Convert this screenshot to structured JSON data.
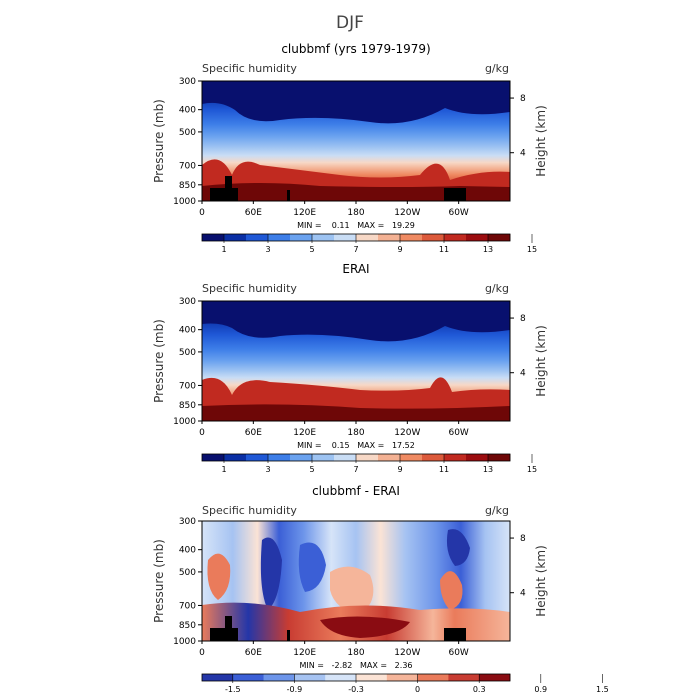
{
  "page_title": "DJF",
  "colors": {
    "blue_scale": [
      "#08106e",
      "#0a2fa5",
      "#1f58d6",
      "#3d7ee8",
      "#6aa2ef",
      "#9dc3f2",
      "#c9ddf5",
      "#f7d8c6",
      "#f3b193",
      "#ef8a62",
      "#dc5a3b",
      "#c12a20",
      "#9b0c0f",
      "#6e0707"
    ],
    "diverging_scale": [
      "#2436a8",
      "#3b5fd6",
      "#6d95ea",
      "#a6c3f2",
      "#d6e4f8",
      "#fbe3d5",
      "#f5b59a",
      "#ea7b5b",
      "#c83c32",
      "#8a0c12"
    ],
    "topography": "#000000"
  },
  "chart_data": [
    {
      "type": "contour",
      "title": "clubbmf (yrs 1979-1979)",
      "left_label": "Specific humidity",
      "right_label": "g/kg",
      "ylabel": "Pressure (mb)",
      "right_axis_label": "Height (km)",
      "y_ticks": [
        "300",
        "400",
        "500",
        "700",
        "850",
        "1000"
      ],
      "right_ticks": [
        "8",
        "4"
      ],
      "x_ticks": [
        "0",
        "60E",
        "120E",
        "180",
        "120W",
        "60W"
      ],
      "stats": "MIN =    0.11   MAX =   19.29",
      "colorbar_ticks": [
        "1",
        "3",
        "5",
        "7",
        "9",
        "11",
        "13",
        "15"
      ],
      "colorbar_levels": 14,
      "has_topography": true
    },
    {
      "type": "contour",
      "title": "ERAI",
      "left_label": "Specific humidity",
      "right_label": "g/kg",
      "ylabel": "Pressure (mb)",
      "right_axis_label": "Height (km)",
      "y_ticks": [
        "300",
        "400",
        "500",
        "700",
        "850",
        "1000"
      ],
      "right_ticks": [
        "8",
        "4"
      ],
      "x_ticks": [
        "0",
        "60E",
        "120E",
        "180",
        "120W",
        "60W"
      ],
      "stats": "MIN =    0.15   MAX =   17.52",
      "colorbar_ticks": [
        "1",
        "3",
        "5",
        "7",
        "9",
        "11",
        "13",
        "15"
      ],
      "colorbar_levels": 14,
      "has_topography": false
    },
    {
      "type": "contour",
      "title": "clubbmf - ERAI",
      "left_label": "Specific humidity",
      "right_label": "g/kg",
      "ylabel": "Pressure (mb)",
      "right_axis_label": "Height (km)",
      "y_ticks": [
        "300",
        "400",
        "500",
        "700",
        "850",
        "1000"
      ],
      "right_ticks": [
        "8",
        "4"
      ],
      "x_ticks": [
        "0",
        "60E",
        "120E",
        "180",
        "120W",
        "60W"
      ],
      "stats": "MIN =   -2.82   MAX =   2.36",
      "colorbar_ticks": [
        "-1.5",
        "-0.9",
        "-0.3",
        "0",
        "0.3",
        "0.9",
        "1.5"
      ],
      "colorbar_levels": 10,
      "has_topography": true
    }
  ]
}
